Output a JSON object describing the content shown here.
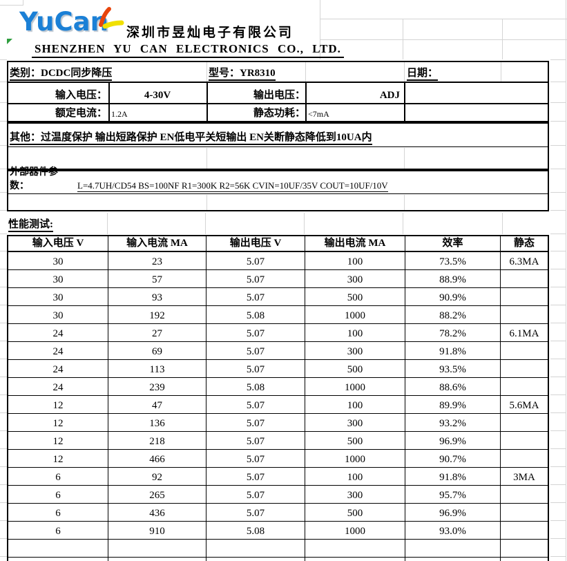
{
  "logo": {
    "text": "YuCan"
  },
  "header": {
    "company_cn": "深圳市昱灿电子有限公司",
    "company_en": "SHENZHEN YU CAN ELECTRONICS CO., LTD."
  },
  "info": {
    "category": "类别：DCDC同步降压",
    "model": "型号：YR8310",
    "date": "日期：",
    "vin_label": "输入电压：",
    "vin_value": "4-30V",
    "vout_label": "输出电压：",
    "vout_value": "ADJ",
    "rated_label": "额定电流：",
    "rated_value": "1.2A",
    "iq_label": "静态功耗：",
    "iq_value": "<7mA",
    "other": "其他：过温度保护  输出短路保护 EN低电平关短输出 EN关断静态降低到10UA内",
    "ext_label": "外部器件参数：",
    "ext_value": "L=4.7UH/CD54  BS=100NF  R1=300K R2=56K CVIN=10UF/35V COUT=10UF/10V",
    "perf_label": "性能测试:"
  },
  "table": {
    "headers": [
      "输入电压 V",
      "输入电流 MA",
      "输出电压 V",
      "输出电流 MA",
      "效率",
      "静态"
    ],
    "rows": [
      [
        "30",
        "23",
        "5.07",
        "100",
        "73.5%",
        "6.3MA"
      ],
      [
        "30",
        "57",
        "5.07",
        "300",
        "88.9%",
        ""
      ],
      [
        "30",
        "93",
        "5.07",
        "500",
        "90.9%",
        ""
      ],
      [
        "30",
        "192",
        "5.08",
        "1000",
        "88.2%",
        ""
      ],
      [
        "24",
        "27",
        "5.07",
        "100",
        "78.2%",
        "6.1MA"
      ],
      [
        "24",
        "69",
        "5.07",
        "300",
        "91.8%",
        ""
      ],
      [
        "24",
        "113",
        "5.07",
        "500",
        "93.5%",
        ""
      ],
      [
        "24",
        "239",
        "5.08",
        "1000",
        "88.6%",
        ""
      ],
      [
        "12",
        "47",
        "5.07",
        "100",
        "89.9%",
        "5.6MA"
      ],
      [
        "12",
        "136",
        "5.07",
        "300",
        "93.2%",
        ""
      ],
      [
        "12",
        "218",
        "5.07",
        "500",
        "96.9%",
        ""
      ],
      [
        "12",
        "466",
        "5.07",
        "1000",
        "90.7%",
        ""
      ],
      [
        "6",
        "92",
        "5.07",
        "100",
        "91.8%",
        "3MA"
      ],
      [
        "6",
        "265",
        "5.07",
        "300",
        "95.7%",
        ""
      ],
      [
        "6",
        "436",
        "5.07",
        "500",
        "96.9%",
        ""
      ],
      [
        "6",
        "910",
        "5.08",
        "1000",
        "93.0%",
        ""
      ]
    ]
  },
  "colors": {
    "logo_blue": "#1b80d6",
    "swoosh_red": "#e8440c",
    "swoosh_yellow": "#f0e000",
    "marker_green": "#2f9e3f",
    "gridline": "#d4d4d4",
    "border": "#000000"
  }
}
